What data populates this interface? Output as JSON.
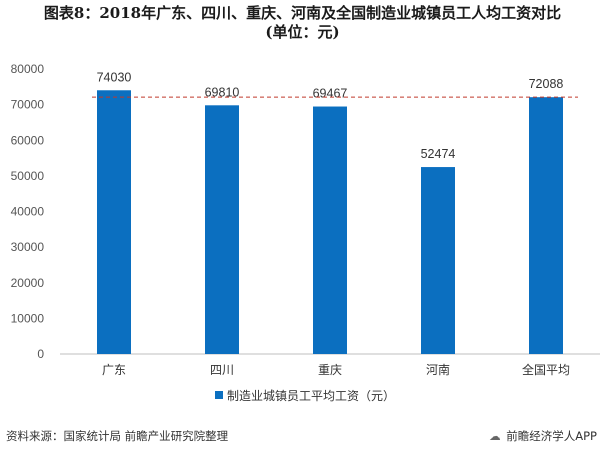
{
  "title": {
    "line1": "图表8：2018年广东、四川、重庆、河南及全国制造业城镇员工人均工资对比",
    "line2": "(单位：元)"
  },
  "chart_data": {
    "type": "bar",
    "categories": [
      "广东",
      "四川",
      "重庆",
      "河南",
      "全国平均"
    ],
    "series": [
      {
        "name": "制造业城镇员工平均工资（元）",
        "values": [
          74030,
          69810,
          69467,
          52474,
          72088
        ]
      }
    ],
    "data_labels": [
      "74030",
      "69810",
      "69467",
      "52474",
      "72088"
    ],
    "ylim": [
      0,
      80000
    ],
    "yticks": [
      0,
      10000,
      20000,
      30000,
      40000,
      50000,
      60000,
      70000,
      80000
    ],
    "reference_line": {
      "value": 72088,
      "style": "dashed",
      "color": "#c0392b"
    },
    "legend_position": "bottom",
    "grid": false,
    "bar_color": "#0b6fc0"
  },
  "footer": {
    "source": "资料来源：国家统计局 前瞻产业研究院整理",
    "app_icon": "chat-bubble-icon",
    "app_label": "前瞻经济学人APP"
  }
}
